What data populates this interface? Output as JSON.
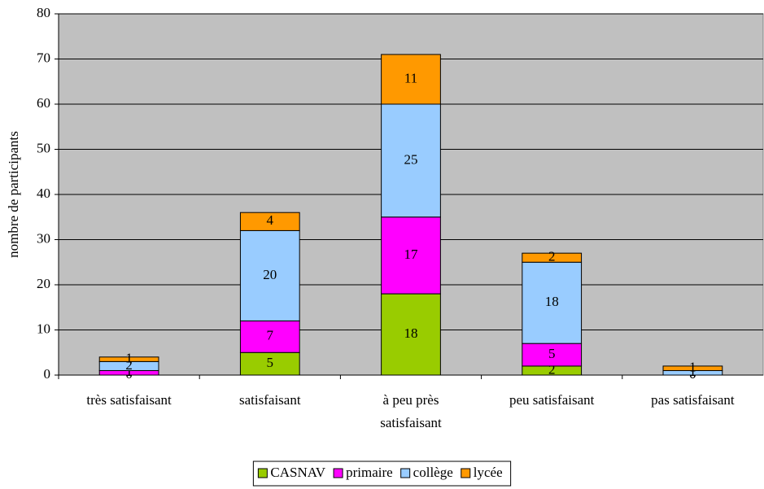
{
  "chart_data": {
    "type": "stacked_bar",
    "y_label": "nombre de participants",
    "categories": [
      "très satisfaisant",
      "satisfaisant",
      "à peu près satisfaisant",
      "peu satisfaisant",
      "pas satisfaisant"
    ],
    "series": [
      {
        "name": "CASNAV",
        "color": "#99cc00",
        "values": [
          0,
          5,
          18,
          2,
          0
        ]
      },
      {
        "name": "primaire",
        "color": "#ff00ff",
        "values": [
          1,
          7,
          17,
          5,
          0
        ]
      },
      {
        "name": "collège",
        "color": "#99ccff",
        "values": [
          2,
          20,
          25,
          18,
          1
        ]
      },
      {
        "name": "lycée",
        "color": "#ff9900",
        "values": [
          1,
          4,
          11,
          2,
          1
        ]
      }
    ],
    "ylim": [
      0,
      80
    ],
    "yticks": [
      0,
      10,
      20,
      30,
      40,
      50,
      60,
      70,
      80
    ],
    "grid": true,
    "legend": "bottom"
  }
}
